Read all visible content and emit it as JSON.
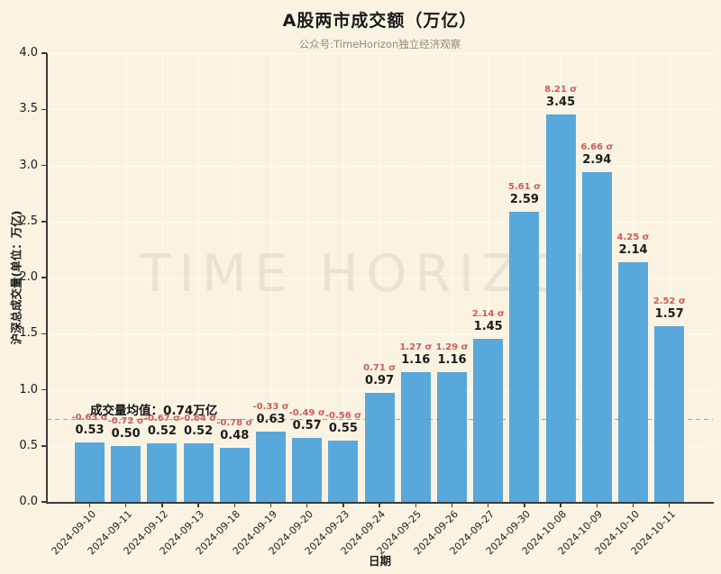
{
  "header": {
    "title": "A股两市成交额（万亿）",
    "subtitle": "公众号:TimeHorizon独立经济观察"
  },
  "watermark": "TIME HORIZON",
  "chart_data": {
    "type": "bar",
    "title": "A股两市成交额（万亿）",
    "subtitle": "公众号:TimeHorizon独立经济观察",
    "xlabel": "日期",
    "ylabel": "沪深总成交量(单位：万亿)",
    "ylim": [
      0.0,
      4.0
    ],
    "ytick_step": 0.5,
    "grid": true,
    "legend": "none",
    "mean_value": 0.74,
    "mean_label": "成交量均值：0.74万亿",
    "bar_color": "#58A8DC",
    "sigma_color": "#CD5C5C",
    "mean_line_color": "#D66565",
    "background_color": "#FAF3E2",
    "categories": [
      "2024-09-10",
      "2024-09-11",
      "2024-09-12",
      "2024-09-13",
      "2024-09-18",
      "2024-09-19",
      "2024-09-20",
      "2024-09-23",
      "2024-09-24",
      "2024-09-25",
      "2024-09-26",
      "2024-09-27",
      "2024-09-30",
      "2024-10-08",
      "2024-10-09",
      "2024-10-10",
      "2024-10-11"
    ],
    "values": [
      0.53,
      0.5,
      0.52,
      0.52,
      0.48,
      0.63,
      0.57,
      0.55,
      0.97,
      1.16,
      1.16,
      1.45,
      2.59,
      3.45,
      2.94,
      2.14,
      1.57
    ],
    "sigma_labels": [
      "-0.63 σ",
      "-0.72 σ",
      "-0.67 σ",
      "-0.64 σ",
      "-0.78 σ",
      "-0.33 σ",
      "-0.49 σ",
      "-0.56 σ",
      "0.71 σ",
      "1.27 σ",
      "1.29 σ",
      "2.14 σ",
      "5.61 σ",
      "8.21 σ",
      "6.66 σ",
      "4.25 σ",
      "2.52 σ"
    ]
  }
}
